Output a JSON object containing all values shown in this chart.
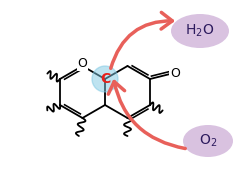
{
  "bg_color": "#ffffff",
  "molecule_color": "#000000",
  "active_site_color": "#7ec8e3",
  "active_site_alpha": 0.5,
  "arrow_color": "#e8605a",
  "h2o_bubble_color": "#c9a8d4",
  "o2_bubble_color": "#c9a8d4",
  "h2o_text": "H$_2$O",
  "o2_text": "O$_2$",
  "c_label": "C",
  "c_label_color": "#e8201a",
  "label_text_color": "#2d1b5e",
  "label_fontsize": 11,
  "c_fontsize": 10
}
